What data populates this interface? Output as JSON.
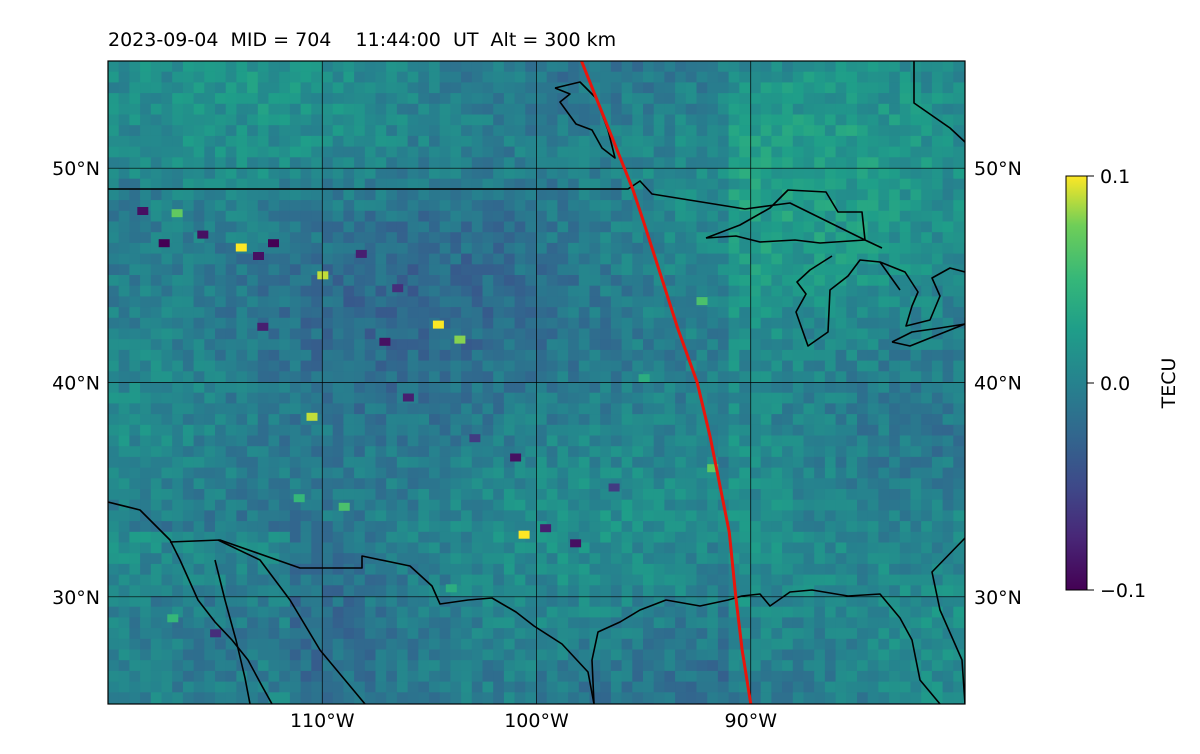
{
  "title": "2023-09-04  MID = 704    11:44:00  UT  Alt = 300 km",
  "chart_data": {
    "type": "heatmap",
    "title": "2023-09-04  MID = 704    11:44:00  UT  Alt = 300 km",
    "map_extent": {
      "lon": [
        -120,
        -80
      ],
      "lat": [
        25,
        55
      ]
    },
    "x_ticks": [
      {
        "value": -110,
        "label": "110°W"
      },
      {
        "value": -100,
        "label": "100°W"
      },
      {
        "value": -90,
        "label": "90°W"
      }
    ],
    "y_ticks": [
      {
        "value": 30,
        "label": "30°N"
      },
      {
        "value": 40,
        "label": "40°N"
      },
      {
        "value": 50,
        "label": "50°N"
      }
    ],
    "grid": true,
    "colormap": "viridis",
    "colorbar": {
      "label": "TECU",
      "range": [
        -0.1,
        0.1
      ],
      "ticks": [
        {
          "value": 0.1,
          "label": "0.1"
        },
        {
          "value": 0.0,
          "label": "0.0"
        },
        {
          "value": -0.1,
          "label": "−0.1"
        }
      ]
    },
    "track": {
      "color": "#e8160c",
      "points": [
        [
          -97.9,
          55.0
        ],
        [
          -97.3,
          53.5
        ],
        [
          -96.5,
          51.5
        ],
        [
          -95.5,
          49.0
        ],
        [
          -95.0,
          47.5
        ],
        [
          -94.2,
          45.0
        ],
        [
          -93.4,
          42.5
        ],
        [
          -92.5,
          40.0
        ],
        [
          -91.9,
          37.5
        ],
        [
          -91.5,
          35.5
        ],
        [
          -91.0,
          33.0
        ],
        [
          -90.7,
          30.0
        ],
        [
          -90.4,
          27.5
        ],
        [
          -90.0,
          25.0
        ]
      ]
    },
    "hotspots": [
      {
        "lon": -116.8,
        "lat": 47.9,
        "value": 0.07
      },
      {
        "lon": -115.6,
        "lat": 46.9,
        "value": -0.09
      },
      {
        "lon": -113.8,
        "lat": 46.3,
        "value": 0.1
      },
      {
        "lon": -113.0,
        "lat": 45.9,
        "value": -0.09
      },
      {
        "lon": -112.3,
        "lat": 46.5,
        "value": -0.1
      },
      {
        "lon": -110.0,
        "lat": 45.0,
        "value": 0.09
      },
      {
        "lon": -108.2,
        "lat": 46.0,
        "value": -0.08
      },
      {
        "lon": -112.8,
        "lat": 42.6,
        "value": -0.08
      },
      {
        "lon": -104.6,
        "lat": 42.7,
        "value": 0.1
      },
      {
        "lon": -103.6,
        "lat": 42.0,
        "value": 0.08
      },
      {
        "lon": -107.1,
        "lat": 41.9,
        "value": -0.09
      },
      {
        "lon": -110.5,
        "lat": 38.4,
        "value": 0.09
      },
      {
        "lon": -106.0,
        "lat": 39.3,
        "value": -0.08
      },
      {
        "lon": -101.0,
        "lat": 36.5,
        "value": -0.09
      },
      {
        "lon": -100.6,
        "lat": 32.9,
        "value": 0.1
      },
      {
        "lon": -99.6,
        "lat": 33.2,
        "value": -0.08
      },
      {
        "lon": -98.2,
        "lat": 32.5,
        "value": -0.09
      },
      {
        "lon": -118.4,
        "lat": 48.0,
        "value": -0.09
      },
      {
        "lon": -117.4,
        "lat": 46.5,
        "value": -0.1
      },
      {
        "lon": -109.0,
        "lat": 34.2,
        "value": 0.06
      },
      {
        "lon": -115.0,
        "lat": 28.3,
        "value": -0.07
      },
      {
        "lon": -92.3,
        "lat": 43.8,
        "value": 0.06
      },
      {
        "lon": -91.8,
        "lat": 36.0,
        "value": 0.07
      },
      {
        "lon": -117.0,
        "lat": 29.0,
        "value": 0.05
      },
      {
        "lon": -95.0,
        "lat": 40.2,
        "value": 0.04
      },
      {
        "lon": -106.5,
        "lat": 44.4,
        "value": -0.07
      },
      {
        "lon": -102.9,
        "lat": 37.4,
        "value": -0.06
      },
      {
        "lon": -96.4,
        "lat": 35.1,
        "value": -0.06
      },
      {
        "lon": -111.1,
        "lat": 34.6,
        "value": 0.05
      },
      {
        "lon": -104.0,
        "lat": 30.4,
        "value": 0.04
      }
    ]
  }
}
